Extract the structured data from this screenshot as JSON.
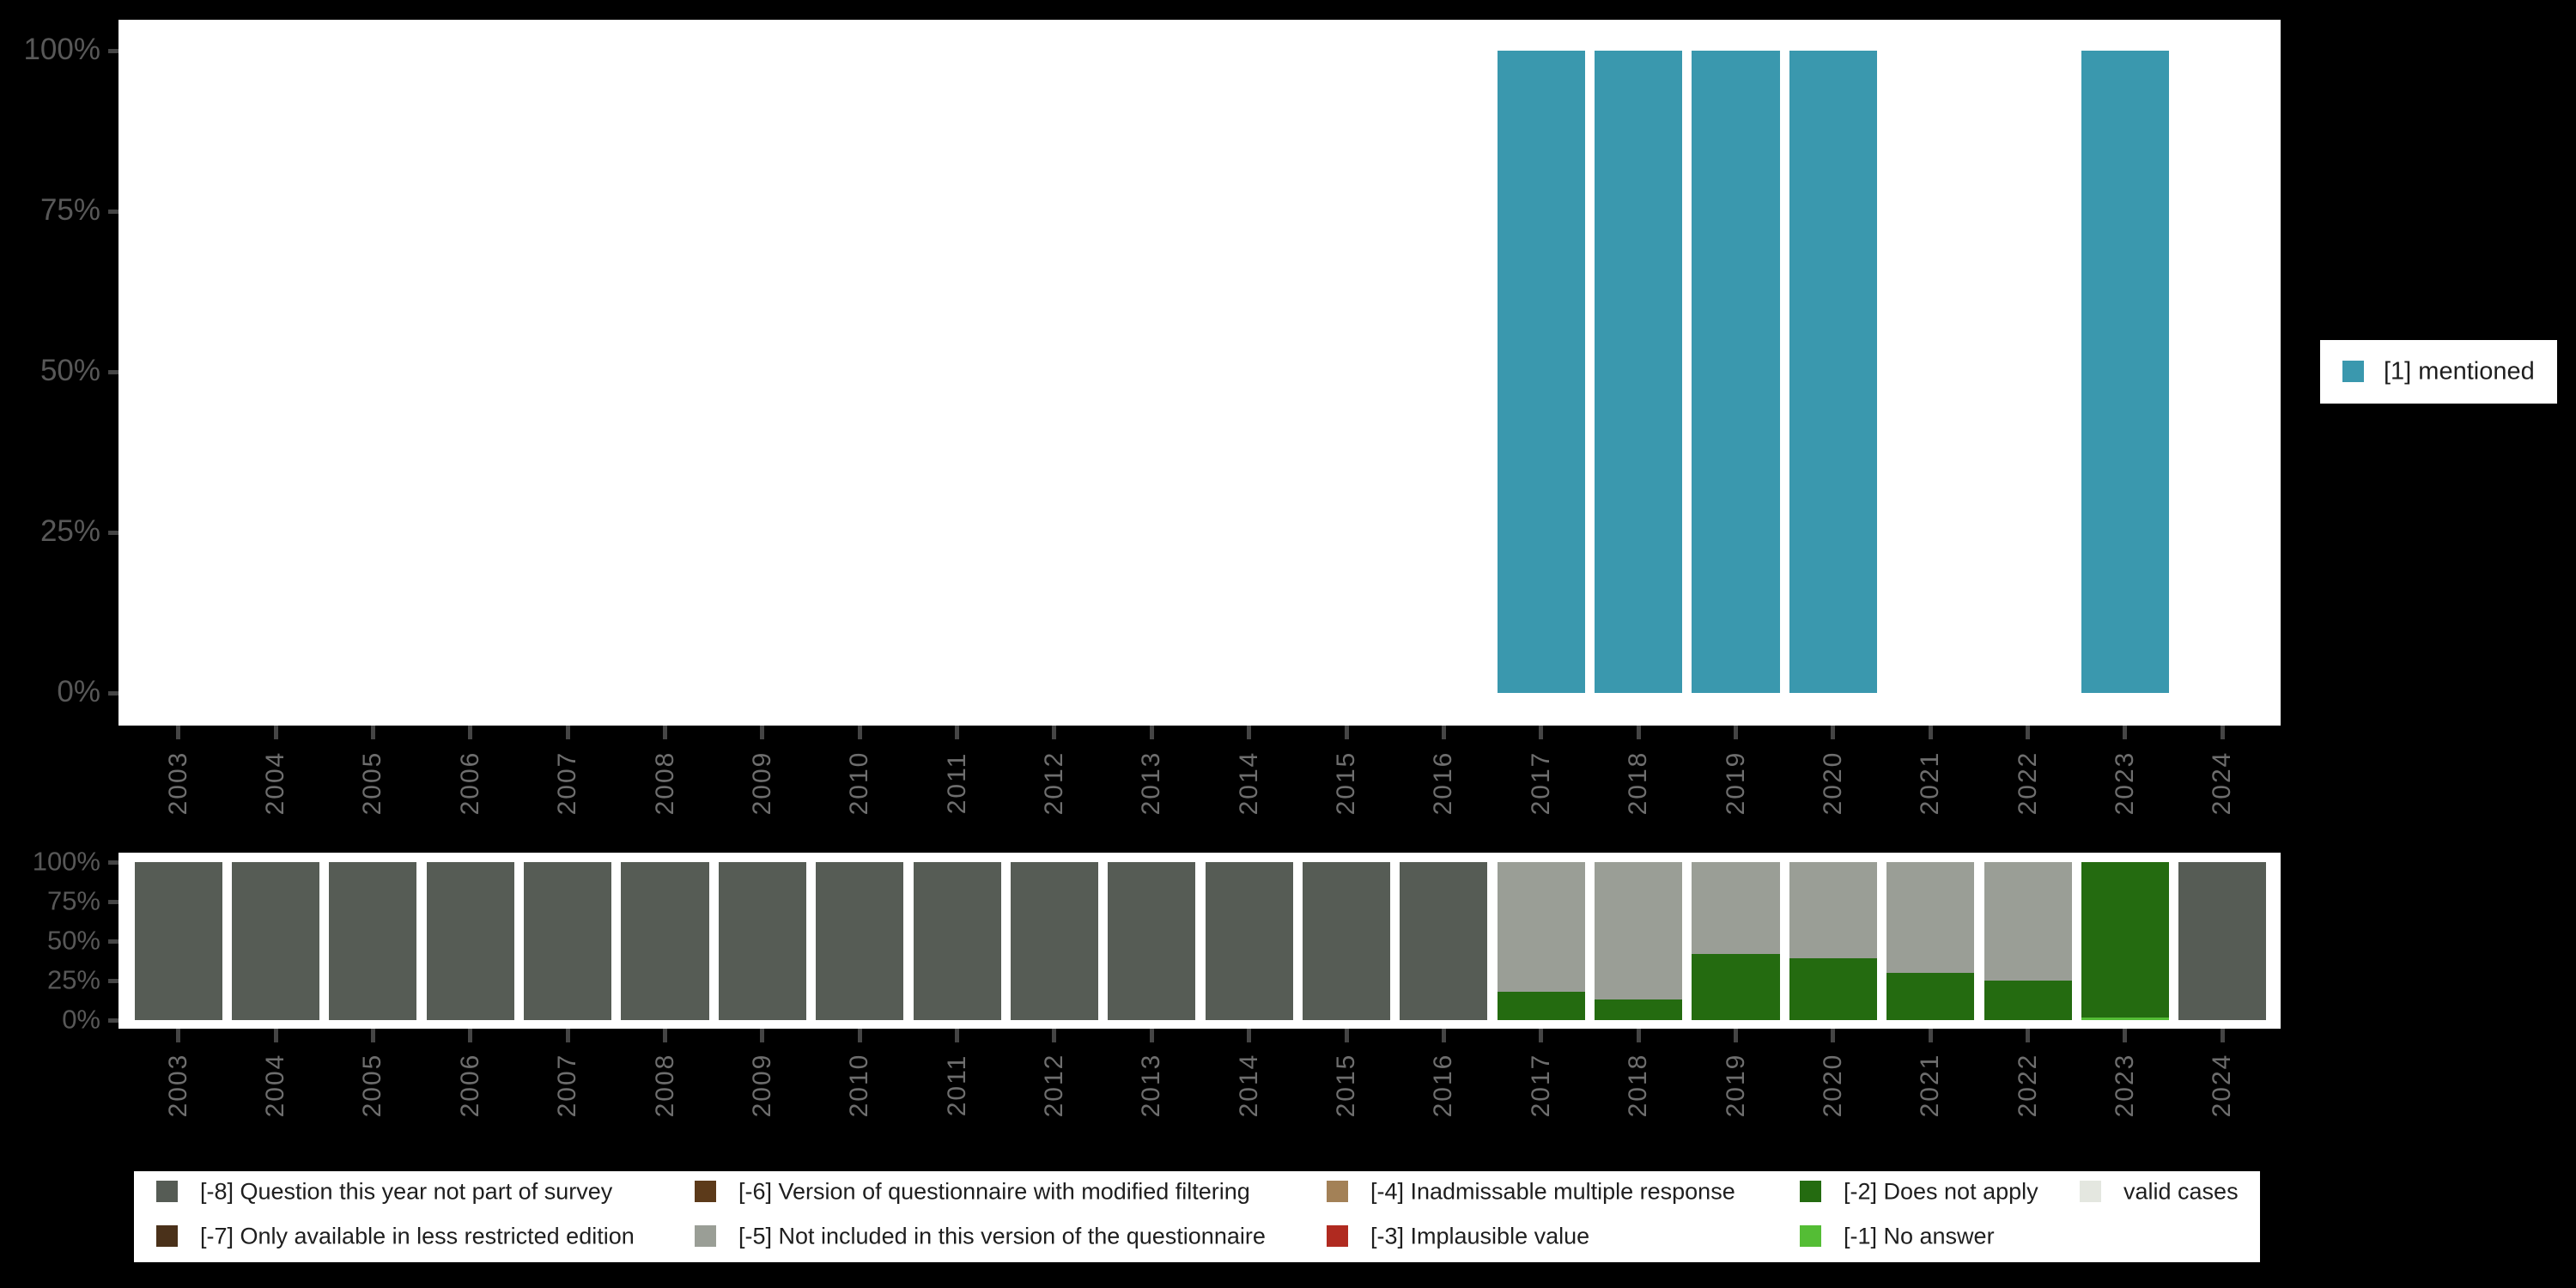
{
  "background": "#000000",
  "top_legend": {
    "label": "[1] mentioned",
    "color": "#3a98ae"
  },
  "chart_data": [
    {
      "type": "bar",
      "title": "",
      "xlabel": "",
      "ylabel": "",
      "ylim": [
        0,
        100
      ],
      "grid": false,
      "legend_position": "right",
      "categories": [
        "2003",
        "2004",
        "2005",
        "2006",
        "2007",
        "2008",
        "2009",
        "2010",
        "2011",
        "2012",
        "2013",
        "2014",
        "2015",
        "2016",
        "2017",
        "2018",
        "2019",
        "2020",
        "2021",
        "2022",
        "2023",
        "2024"
      ],
      "yticks": [
        "100%",
        "75%",
        "50%",
        "25%",
        "0%"
      ],
      "ytick_values": [
        100,
        75,
        50,
        25,
        0
      ],
      "series": [
        {
          "name": "[1] mentioned",
          "color": "#3a98ae",
          "values": [
            null,
            null,
            null,
            null,
            null,
            null,
            null,
            null,
            null,
            null,
            null,
            null,
            null,
            null,
            100,
            100,
            100,
            100,
            null,
            null,
            100,
            null
          ]
        }
      ]
    },
    {
      "type": "stacked-bar",
      "title": "",
      "xlabel": "",
      "ylabel": "",
      "ylim": [
        0,
        100
      ],
      "grid": false,
      "legend_position": "bottom",
      "categories": [
        "2003",
        "2004",
        "2005",
        "2006",
        "2007",
        "2008",
        "2009",
        "2010",
        "2011",
        "2012",
        "2013",
        "2014",
        "2015",
        "2016",
        "2017",
        "2018",
        "2019",
        "2020",
        "2021",
        "2022",
        "2023",
        "2024"
      ],
      "yticks": [
        "100%",
        "75%",
        "50%",
        "25%",
        "0%"
      ],
      "ytick_values": [
        100,
        75,
        50,
        25,
        0
      ],
      "series": [
        {
          "name": "[-1] No answer",
          "color": "#54bd35",
          "values": [
            0,
            0,
            0,
            0,
            0,
            0,
            0,
            0,
            0,
            0,
            0,
            0,
            0,
            0,
            0,
            0,
            0,
            0,
            0,
            0,
            1.5,
            0
          ]
        },
        {
          "name": "[-2] Does not apply",
          "color": "#246b10",
          "values": [
            0,
            0,
            0,
            0,
            0,
            0,
            0,
            0,
            0,
            0,
            0,
            0,
            0,
            0,
            18,
            13,
            42,
            39,
            30,
            25,
            98.5,
            0
          ]
        },
        {
          "name": "[-5] Not included in this version of the questionnaire",
          "color": "#9a9e96",
          "values": [
            0,
            0,
            0,
            0,
            0,
            0,
            0,
            0,
            0,
            0,
            0,
            0,
            0,
            0,
            82,
            87,
            58,
            61,
            70,
            75,
            0,
            0
          ]
        },
        {
          "name": "[-8] Question this year not part of survey",
          "color": "#565c55",
          "values": [
            100,
            100,
            100,
            100,
            100,
            100,
            100,
            100,
            100,
            100,
            100,
            100,
            100,
            100,
            0,
            0,
            0,
            0,
            0,
            0,
            0,
            100
          ]
        }
      ]
    }
  ],
  "missing_legend": {
    "items": [
      {
        "label": "[-8] Question this year not part of survey",
        "color": "#565c55",
        "col": 0,
        "row": 0
      },
      {
        "label": "[-7] Only available in less restricted edition",
        "color": "#4a311a",
        "col": 0,
        "row": 1
      },
      {
        "label": "[-6] Version of questionnaire with modified filtering",
        "color": "#5c3a1a",
        "col": 1,
        "row": 0
      },
      {
        "label": "[-5] Not included in this version of the questionnaire",
        "color": "#9a9e96",
        "col": 1,
        "row": 1
      },
      {
        "label": "[-4] Inadmissable multiple response",
        "color": "#a38157",
        "col": 2,
        "row": 0
      },
      {
        "label": "[-3] Implausible value",
        "color": "#b02a20",
        "col": 2,
        "row": 1
      },
      {
        "label": "[-2] Does not apply",
        "color": "#246b10",
        "col": 3,
        "row": 0
      },
      {
        "label": "[-1] No answer",
        "color": "#54bd35",
        "col": 3,
        "row": 1
      },
      {
        "label": "valid cases",
        "color": "#e4e7e0",
        "col": 4,
        "row": 0
      }
    ]
  }
}
